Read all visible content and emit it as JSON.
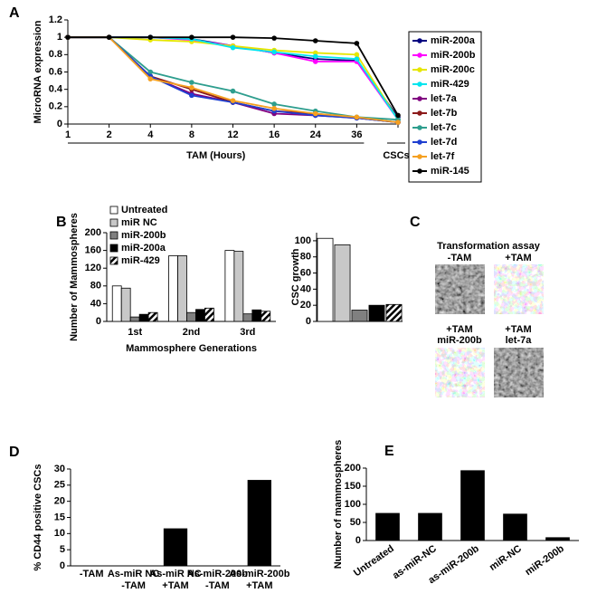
{
  "chart_data": [
    {
      "type": "line",
      "panel": "A",
      "ylabel": "MicroRNA expression",
      "categories": [
        "1",
        "2",
        "4",
        "8",
        "12",
        "16",
        "24",
        "36",
        null
      ],
      "group_labels": [
        "TAM (Hours)",
        "CSCs"
      ],
      "ylim": [
        0,
        1.2
      ],
      "yticks": [
        0,
        0.2,
        0.4,
        0.6,
        0.8,
        1,
        1.2
      ],
      "grid": false,
      "legend": "right",
      "series": [
        {
          "name": "miR-200a",
          "color": "#000080",
          "values": [
            1,
            1,
            1,
            0.98,
            0.9,
            0.82,
            0.75,
            0.73,
            0.08
          ]
        },
        {
          "name": "miR-200b",
          "color": "#ff00ff",
          "values": [
            1,
            1,
            1,
            0.97,
            0.9,
            0.82,
            0.72,
            0.72,
            0.05
          ]
        },
        {
          "name": "miR-200c",
          "color": "#e6e600",
          "values": [
            1,
            1,
            0.97,
            0.95,
            0.9,
            0.85,
            0.82,
            0.8,
            0.05
          ]
        },
        {
          "name": "miR-429",
          "color": "#00e5ee",
          "values": [
            1,
            1,
            1,
            0.98,
            0.88,
            0.83,
            0.78,
            0.75,
            0.05
          ]
        },
        {
          "name": "let-7a",
          "color": "#800080",
          "values": [
            1,
            1,
            0.55,
            0.35,
            0.25,
            0.12,
            0.1,
            0.07,
            0.02
          ]
        },
        {
          "name": "let-7b",
          "color": "#8b1a1a",
          "values": [
            1,
            1,
            0.55,
            0.4,
            0.25,
            0.15,
            0.12,
            0.07,
            0.02
          ]
        },
        {
          "name": "let-7c",
          "color": "#2e9e8e",
          "values": [
            1,
            1,
            0.6,
            0.48,
            0.38,
            0.23,
            0.15,
            0.08,
            0.05
          ]
        },
        {
          "name": "let-7d",
          "color": "#1f3fd0",
          "values": [
            1,
            1,
            0.55,
            0.33,
            0.25,
            0.15,
            0.1,
            0.07,
            0.02
          ]
        },
        {
          "name": "let-7f",
          "color": "#f5a020",
          "values": [
            1,
            1,
            0.52,
            0.42,
            0.27,
            0.18,
            0.12,
            0.08,
            0.02
          ]
        },
        {
          "name": "miR-145",
          "color": "#000000",
          "values": [
            1,
            1,
            1,
            1,
            1,
            0.99,
            0.96,
            0.93,
            0.1
          ]
        }
      ]
    },
    {
      "type": "bar",
      "panel": "B",
      "ylabel": "Number of Mammospheres",
      "xlabel": "Mammosphere Generations",
      "categories": [
        "1st",
        "2nd",
        "3rd"
      ],
      "ylim": [
        0,
        200
      ],
      "yticks": [
        0,
        40,
        80,
        120,
        160,
        200
      ],
      "grid": false,
      "legend": "top-left",
      "series": [
        {
          "name": "Untreated",
          "color": "#ffffff",
          "values": [
            80,
            148,
            160
          ]
        },
        {
          "name": "miR NC",
          "color": "#c8c8c8",
          "values": [
            75,
            148,
            158
          ]
        },
        {
          "name": "miR-200b",
          "color": "#808080",
          "values": [
            10,
            20,
            17
          ]
        },
        {
          "name": "miR-200a",
          "color": "#000000",
          "values": [
            16,
            27,
            26
          ]
        },
        {
          "name": "miR-429",
          "color": "#000000",
          "hatch": true,
          "values": [
            20,
            30,
            23
          ]
        }
      ]
    },
    {
      "type": "bar",
      "ylabel": "CSC growth",
      "categories": [
        null,
        null,
        null,
        null,
        null
      ],
      "values": [
        103,
        95,
        14,
        20,
        21
      ],
      "colors": [
        "#ffffff",
        "#c8c8c8",
        "#808080",
        "#000000",
        "hatch"
      ],
      "ylim": [
        0,
        110
      ],
      "yticks": [
        0,
        20,
        40,
        60,
        80,
        100
      ],
      "grid": false
    },
    {
      "type": "bar",
      "panel": "D",
      "ylabel": "% CD44 positive CSCs",
      "categories": [
        [
          "-TAM"
        ],
        [
          "As-miR NC",
          "-TAM"
        ],
        [
          "As-miR NC",
          "+TAM"
        ],
        [
          "As-miR-200b",
          "-TAM"
        ],
        [
          "As-miR-200b",
          "+TAM"
        ]
      ],
      "values": [
        0,
        0,
        11.5,
        0,
        26.5
      ],
      "color": "#000000",
      "ylim": [
        0,
        30
      ],
      "yticks": [
        0,
        5,
        10,
        15,
        20,
        25,
        30
      ],
      "grid": false
    },
    {
      "type": "bar",
      "panel": "E",
      "ylabel": "Number of mammospheres",
      "categories": [
        "Untreated",
        "as-miR-NC",
        "as-miR-200b",
        "miR-NC",
        "miR-200b"
      ],
      "values": [
        75,
        75,
        193,
        73,
        8
      ],
      "color": "#000000",
      "ylim": [
        0,
        200
      ],
      "yticks": [
        0,
        50,
        100,
        150,
        200
      ],
      "grid": false
    }
  ],
  "panel_c": {
    "panel": "C",
    "title": "Transformation assay",
    "images": [
      [
        "-TAM"
      ],
      [
        "+TAM"
      ],
      [
        "+TAM",
        "miR-200b"
      ],
      [
        "+TAM",
        "let-7a"
      ]
    ]
  }
}
